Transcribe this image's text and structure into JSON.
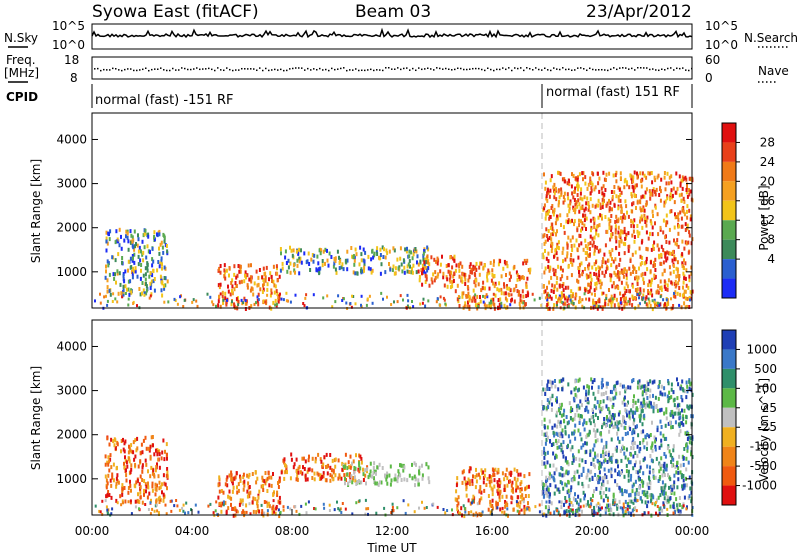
{
  "header": {
    "site": "Syowa East (fitACF)",
    "beam": "Beam 03",
    "date": "23/Apr/2012"
  },
  "aux_panels": {
    "nsky_label": "N.Sky",
    "nsky_tick_top": "10^5",
    "nsky_tick_bottom": "10^0",
    "nsearch_label": "N.Search",
    "nsearch_tick_top": "10^5",
    "nsearch_tick_bottom": "10^0",
    "freq_label": "Freq.",
    "freq_unit": "[MHz]",
    "freq_tick_top": "18",
    "freq_tick_bottom": "8",
    "nave_label": "Nave",
    "nave_tick_top": "60",
    "nave_tick_bottom": "0",
    "cpid_label": "CPID",
    "cpid_segments": [
      {
        "text": "normal (fast) -151 RF",
        "start_hour": 0
      },
      {
        "text": "normal (fast) 151 RF",
        "start_hour": 18.1
      }
    ]
  },
  "chart_data": [
    {
      "type": "heatmap",
      "quantity": "Power",
      "ylabel": "Slant Range [km]",
      "xlabel": "",
      "x_range_hours": [
        0,
        24
      ],
      "ylim": [
        180,
        4600
      ],
      "yticks": [
        "1000",
        "2000",
        "3000",
        "4000"
      ],
      "colorbar_label": "Power [dB]",
      "colorbar_ticks": [
        "4",
        "8",
        "12",
        "16",
        "20",
        "24",
        "28"
      ],
      "colorbar_colors": [
        "#1c2cf5",
        "#2a5fd0",
        "#3c8a5a",
        "#5aa950",
        "#f2c41a",
        "#f5a020",
        "#f07a18",
        "#e8401a",
        "#e01010"
      ],
      "echo_regions": [
        {
          "hours": [
            0.5,
            3.0
          ],
          "range_km": [
            500,
            2000
          ],
          "level": "mid"
        },
        {
          "hours": [
            5.0,
            7.5
          ],
          "range_km": [
            200,
            1200
          ],
          "level": "high"
        },
        {
          "hours": [
            7.5,
            13.5
          ],
          "range_km": [
            1000,
            1600
          ],
          "level": "mid"
        },
        {
          "hours": [
            13.0,
            14.5
          ],
          "range_km": [
            700,
            1400
          ],
          "level": "high"
        },
        {
          "hours": [
            14.5,
            17.5
          ],
          "range_km": [
            200,
            1300
          ],
          "level": "high"
        },
        {
          "hours": [
            18.0,
            24.0
          ],
          "range_km": [
            200,
            3300
          ],
          "level": "high"
        }
      ]
    },
    {
      "type": "heatmap",
      "quantity": "Velocity",
      "ylabel": "Slant Range [km]",
      "xlabel": "Time UT",
      "x_range_hours": [
        0,
        24
      ],
      "xticks": [
        "00:00",
        "04:00",
        "08:00",
        "12:00",
        "16:00",
        "20:00",
        "00:00"
      ],
      "ylim": [
        180,
        4600
      ],
      "yticks": [
        "1000",
        "2000",
        "3000",
        "4000"
      ],
      "colorbar_label": "Velocity [m s^-1]",
      "colorbar_ticks": [
        "1000",
        "500",
        "100",
        "25",
        "-25",
        "-100",
        "-500",
        "-1000"
      ],
      "colorbar_colors": [
        "#1f3fb5",
        "#3a78c8",
        "#2f8f6a",
        "#5cb846",
        "#c0c0c0",
        "#f0b020",
        "#f08418",
        "#f05a10",
        "#e01010"
      ],
      "echo_regions": [
        {
          "hours": [
            0.5,
            3.0
          ],
          "range_km": [
            500,
            2000
          ],
          "level": "away"
        },
        {
          "hours": [
            5.0,
            7.5
          ],
          "range_km": [
            200,
            1200
          ],
          "level": "away"
        },
        {
          "hours": [
            7.5,
            11.0
          ],
          "range_km": [
            1000,
            1600
          ],
          "level": "away"
        },
        {
          "hours": [
            10.0,
            13.5
          ],
          "range_km": [
            900,
            1400
          ],
          "level": "near-zero"
        },
        {
          "hours": [
            14.5,
            17.5
          ],
          "range_km": [
            200,
            1300
          ],
          "level": "away"
        },
        {
          "hours": [
            18.0,
            24.0
          ],
          "range_km": [
            200,
            3300
          ],
          "level": "toward"
        }
      ]
    }
  ]
}
